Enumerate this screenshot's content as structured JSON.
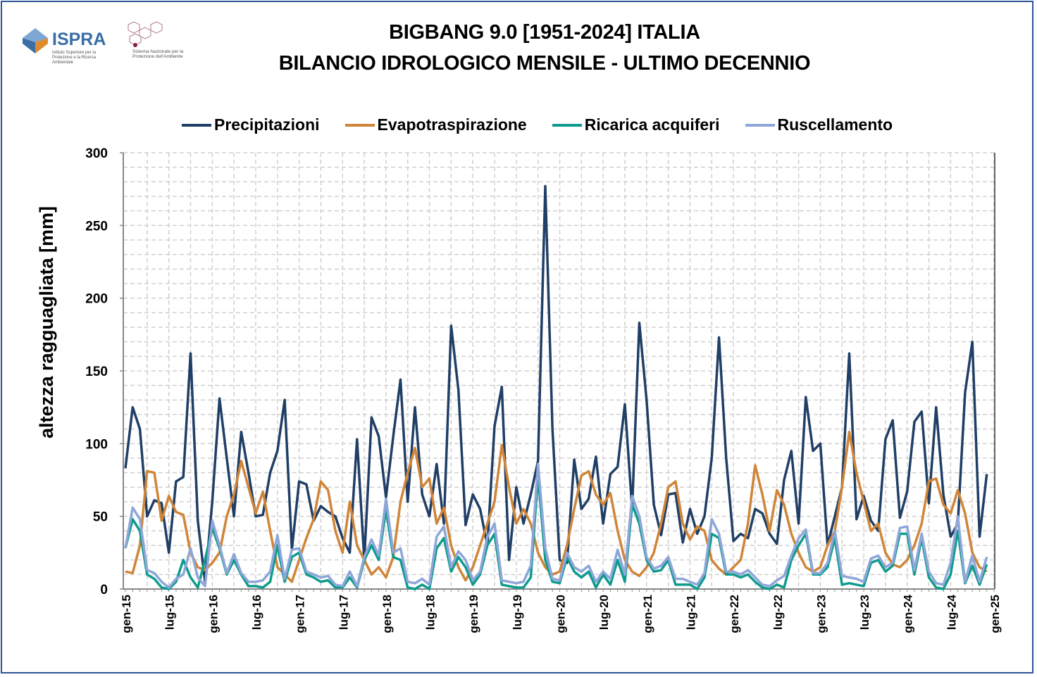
{
  "header": {
    "title_line1": "BIGBANG 9.0 [1951-2024] ITALIA",
    "title_line2": "BILANCIO IDROLOGICO MENSILE - ULTIMO DECENNIO",
    "logo_ispra": "ISPRA",
    "logo_ispra_sub": "Istituto Superiore per la Protezione e la Ricerca Ambientale",
    "logo_snpa_sub": "Sistema Nazionale per la Protezione dell'Ambiente"
  },
  "chart_data": {
    "type": "line",
    "title": "BIGBANG 9.0 [1951-2024] ITALIA - BILANCIO IDROLOGICO MENSILE - ULTIMO DECENNIO",
    "xlabel": "",
    "ylabel": "altezza ragguagliata [mm]",
    "ylim": [
      0,
      300
    ],
    "y_ticks": [
      0,
      50,
      100,
      150,
      200,
      250,
      300
    ],
    "x_range": [
      "gen-15",
      "dic-24"
    ],
    "x_tick_labels": [
      "gen-15",
      "lug-15",
      "gen-16",
      "lug-16",
      "gen-17",
      "lug-17",
      "gen-18",
      "lug-18",
      "gen-19",
      "lug-19",
      "gen-20",
      "lug-20",
      "gen-21",
      "lug-21",
      "gen-22",
      "lug-22",
      "gen-23",
      "lug-23",
      "gen-24",
      "lug-24",
      "gen-25"
    ],
    "grid": true,
    "legend_position": "top",
    "series": [
      {
        "name": "Precipitazioni",
        "color": "#203f66",
        "values": [
          83,
          125,
          110,
          50,
          61,
          59,
          25,
          74,
          77,
          162,
          47,
          5,
          60,
          131,
          90,
          50,
          108,
          80,
          50,
          51,
          80,
          95,
          130,
          27,
          74,
          72,
          47,
          57,
          53,
          50,
          35,
          25,
          103,
          20,
          118,
          105,
          63,
          105,
          144,
          60,
          125,
          65,
          50,
          86,
          45,
          181,
          137,
          44,
          65,
          55,
          30,
          112,
          139,
          20,
          70,
          45,
          65,
          88,
          277,
          110,
          20,
          18,
          89,
          55,
          62,
          91,
          45,
          79,
          84,
          127,
          55,
          183,
          130,
          58,
          37,
          65,
          66,
          32,
          55,
          38,
          50,
          90,
          173,
          90,
          33,
          38,
          35,
          55,
          52,
          38,
          31,
          75,
          95,
          45,
          132,
          95,
          100,
          30,
          50,
          70,
          162,
          48,
          64,
          47,
          40,
          103,
          116,
          49,
          67,
          115,
          122,
          59,
          125,
          65,
          36,
          45,
          135,
          170,
          36,
          79
        ]
      },
      {
        "name": "Evapotraspirazione",
        "color": "#d08538",
        "values": [
          12,
          11,
          30,
          81,
          80,
          47,
          64,
          53,
          51,
          25,
          15,
          13,
          18,
          25,
          50,
          65,
          88,
          70,
          52,
          67,
          40,
          15,
          10,
          5,
          20,
          35,
          48,
          74,
          68,
          40,
          25,
          60,
          30,
          20,
          10,
          15,
          8,
          22,
          60,
          80,
          97,
          70,
          76,
          45,
          56,
          30,
          15,
          6,
          15,
          30,
          45,
          60,
          99,
          70,
          45,
          55,
          45,
          25,
          15,
          10,
          12,
          30,
          55,
          78,
          81,
          65,
          58,
          66,
          40,
          20,
          12,
          9,
          15,
          25,
          45,
          70,
          74,
          45,
          34,
          43,
          40,
          20,
          14,
          10,
          15,
          20,
          45,
          85,
          65,
          40,
          68,
          58,
          38,
          25,
          15,
          12,
          15,
          30,
          40,
          70,
          108,
          80,
          60,
          40,
          45,
          25,
          17,
          15,
          20,
          30,
          45,
          74,
          76,
          58,
          52,
          68,
          52,
          25,
          15,
          12
        ]
      },
      {
        "name": "Ricarica acquiferi",
        "color": "#0f9b8e",
        "values": [
          28,
          48,
          40,
          10,
          7,
          1,
          0,
          5,
          20,
          8,
          1,
          20,
          42,
          28,
          10,
          20,
          10,
          2,
          2,
          1,
          5,
          30,
          5,
          22,
          25,
          10,
          8,
          5,
          6,
          1,
          1,
          8,
          1,
          20,
          30,
          20,
          55,
          22,
          20,
          1,
          0,
          3,
          0,
          28,
          35,
          12,
          22,
          15,
          3,
          10,
          30,
          38,
          3,
          2,
          1,
          1,
          8,
          78,
          20,
          5,
          4,
          22,
          12,
          8,
          12,
          1,
          10,
          3,
          20,
          5,
          58,
          45,
          20,
          12,
          13,
          20,
          3,
          3,
          3,
          0,
          8,
          38,
          35,
          10,
          10,
          8,
          10,
          5,
          1,
          0,
          3,
          1,
          20,
          30,
          38,
          10,
          10,
          15,
          35,
          3,
          4,
          3,
          2,
          18,
          20,
          12,
          16,
          38,
          38,
          10,
          35,
          8,
          1,
          0,
          10,
          40,
          4,
          16,
          3,
          17
        ]
      },
      {
        "name": "Ruscellamento",
        "color": "#8ea6d8",
        "values": [
          28,
          56,
          48,
          13,
          11,
          5,
          1,
          7,
          10,
          28,
          8,
          2,
          47,
          30,
          11,
          24,
          11,
          5,
          5,
          6,
          12,
          37,
          7,
          27,
          28,
          12,
          10,
          8,
          9,
          3,
          2,
          12,
          2,
          22,
          34,
          23,
          62,
          25,
          28,
          5,
          4,
          7,
          3,
          36,
          43,
          15,
          26,
          20,
          6,
          12,
          36,
          45,
          6,
          5,
          4,
          5,
          16,
          86,
          28,
          7,
          6,
          25,
          15,
          12,
          16,
          5,
          12,
          7,
          27,
          10,
          64,
          50,
          22,
          14,
          16,
          22,
          7,
          7,
          5,
          3,
          11,
          48,
          38,
          12,
          12,
          10,
          13,
          8,
          3,
          2,
          6,
          9,
          23,
          35,
          41,
          11,
          11,
          18,
          40,
          9,
          8,
          7,
          5,
          21,
          23,
          15,
          18,
          42,
          43,
          13,
          38,
          12,
          4,
          3,
          18,
          50,
          5,
          23,
          5,
          22
        ]
      }
    ]
  }
}
